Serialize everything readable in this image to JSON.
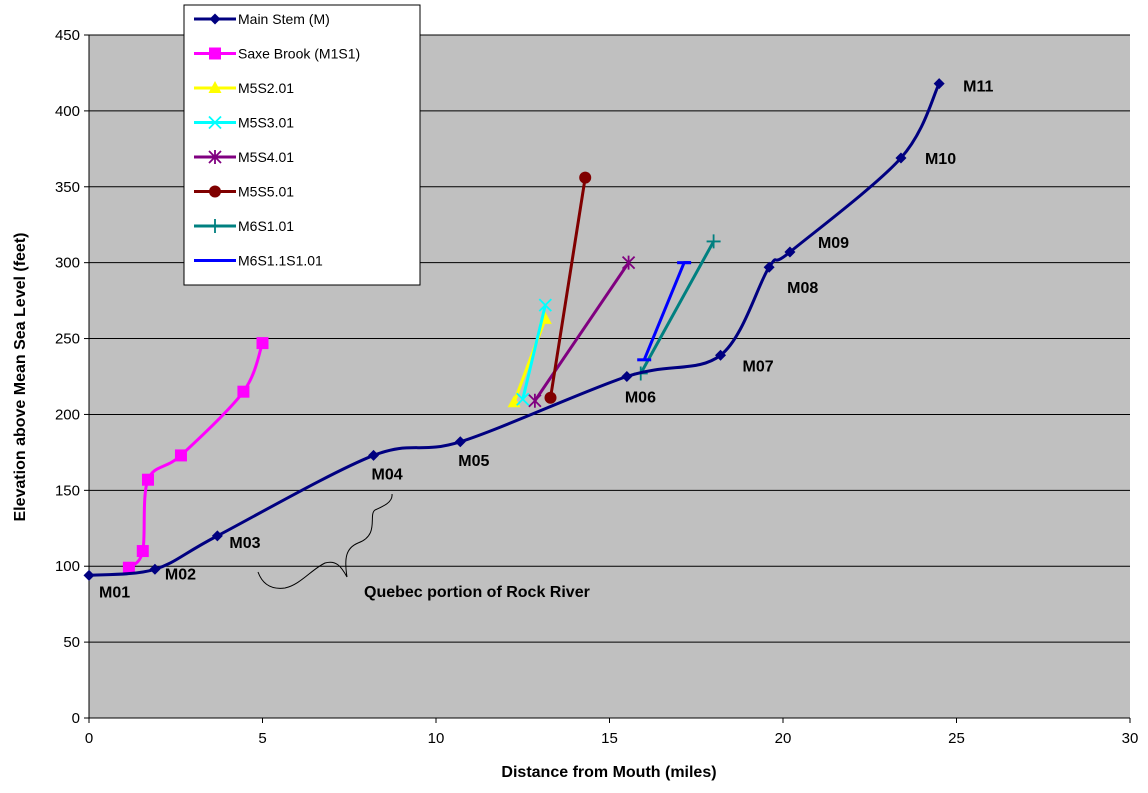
{
  "chart_data": {
    "type": "line",
    "xlabel": "Distance from Mouth (miles)",
    "ylabel": "Elevation above Mean Sea Level (feet)",
    "xlim": [
      0,
      30
    ],
    "ylim": [
      0,
      450
    ],
    "x_ticks": [
      0,
      5,
      10,
      15,
      20,
      25,
      30
    ],
    "y_ticks": [
      0,
      50,
      100,
      150,
      200,
      250,
      300,
      350,
      400,
      450
    ],
    "grid": "horizontal",
    "plot_background": "#c0c0c0",
    "legend_position": "top-left",
    "series": [
      {
        "name": "Main Stem (M)",
        "color": "#000080",
        "marker": "diamond",
        "curve": "smooth",
        "x": [
          0,
          1.9,
          3.7,
          8.2,
          10.7,
          15.5,
          18.2,
          19.6,
          20.2,
          23.4,
          24.5
        ],
        "y": [
          94,
          98,
          120,
          173,
          182,
          225,
          239,
          297,
          307,
          369,
          418
        ],
        "point_labels": [
          "M01",
          "M02",
          "M03",
          "M04",
          "M05",
          "M06",
          "M07",
          "M08",
          "M09",
          "M10",
          "M11"
        ]
      },
      {
        "name": "Saxe Brook (M1S1)",
        "color": "#ff00ff",
        "marker": "square",
        "curve": "smooth",
        "x": [
          1.15,
          1.55,
          1.7,
          2.65,
          4.45,
          5.0
        ],
        "y": [
          99,
          110,
          157,
          173,
          215,
          247
        ]
      },
      {
        "name": "M5S2.01",
        "color": "#ffff00",
        "marker": "triangle",
        "curve": "straight",
        "x": [
          12.25,
          13.15
        ],
        "y": [
          208,
          263
        ]
      },
      {
        "name": "M5S3.01",
        "color": "#00ffff",
        "marker": "x",
        "curve": "straight",
        "x": [
          12.5,
          13.15
        ],
        "y": [
          210,
          272
        ]
      },
      {
        "name": "M5S4.01",
        "color": "#800080",
        "marker": "star",
        "curve": "straight",
        "x": [
          12.85,
          15.55
        ],
        "y": [
          209,
          300
        ]
      },
      {
        "name": "M5S5.01",
        "color": "#800000",
        "marker": "circle",
        "curve": "straight",
        "x": [
          13.3,
          14.3
        ],
        "y": [
          211,
          356
        ]
      },
      {
        "name": "M6S1.01",
        "color": "#008080",
        "marker": "plus",
        "curve": "straight",
        "x": [
          15.9,
          18.0
        ],
        "y": [
          227,
          314
        ]
      },
      {
        "name": "M6S1.1S1.01",
        "color": "#0000ff",
        "marker": "dash",
        "curve": "straight",
        "x": [
          16.0,
          17.15,
          17.35
        ],
        "y": [
          236,
          300,
          300
        ]
      }
    ],
    "annotations": [
      {
        "text": "Quebec portion of Rock River",
        "shape": "brace",
        "x": 12.3,
        "y": 81
      }
    ]
  }
}
